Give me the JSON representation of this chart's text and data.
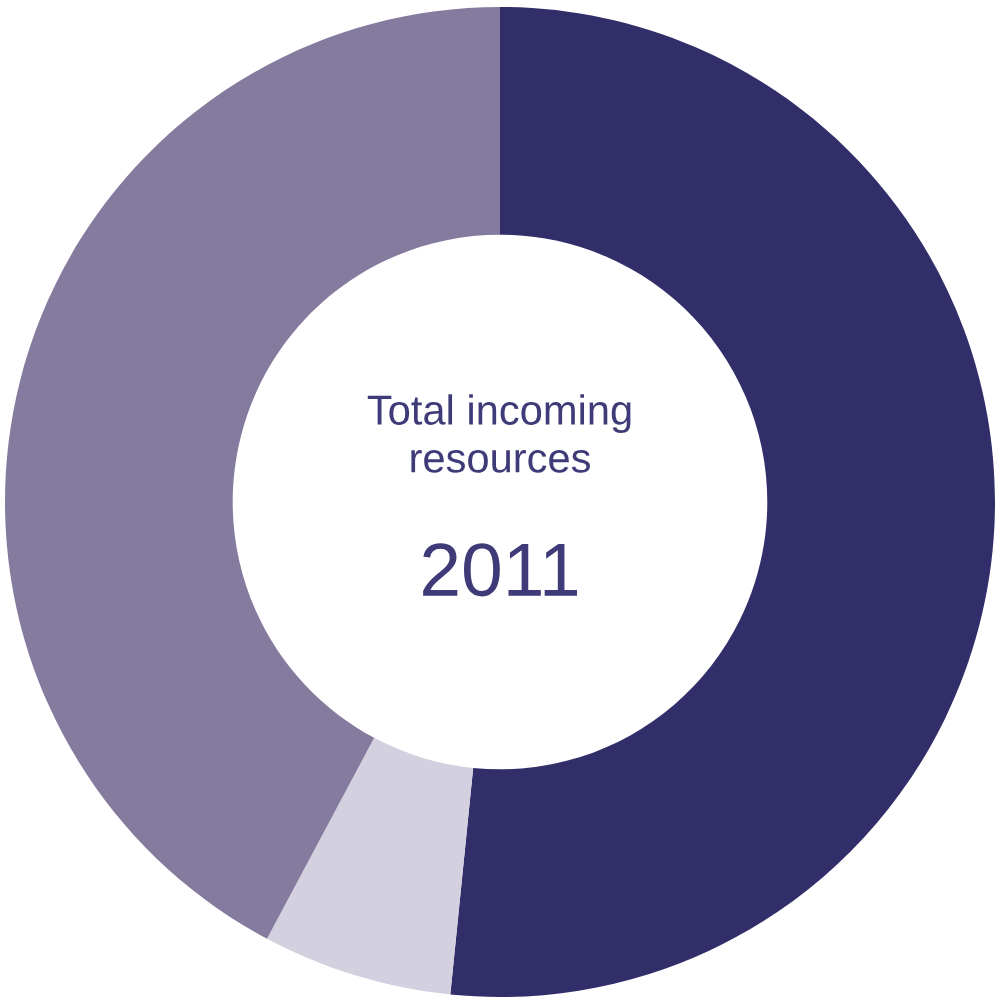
{
  "chart_data": {
    "type": "donut",
    "title": "Total incoming resources",
    "subtitle": "2011",
    "categories": [
      null,
      null,
      null
    ],
    "values": [
      51.6,
      6.2,
      42.2
    ],
    "colors": [
      "#312e6a",
      "#d3d0df",
      "#857b9f"
    ]
  }
}
